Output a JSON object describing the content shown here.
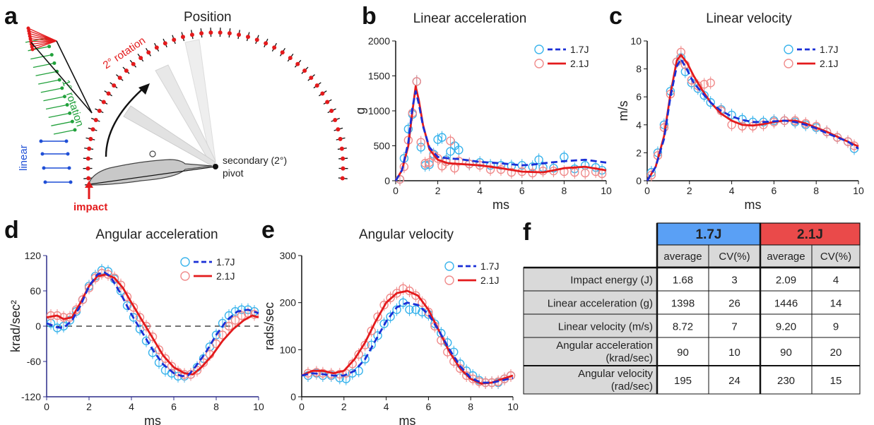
{
  "colors": {
    "series_1_7J": "#1a2fd6",
    "series_2_1J": "#e31a1c",
    "marker_1_7J": "#3ab4ec",
    "marker_2_1J": "#f08b8b",
    "rotation1": "#22a13c",
    "rotation2": "#e31a1c",
    "linear": "#1f4fd6",
    "header_1_7J": "#5aa0f5",
    "header_2_1J": "#ea4a4a"
  },
  "panel_a": {
    "letter": "a",
    "title": "Position",
    "label_rotation2": "2° rotation",
    "label_rotation1": "1° rotation",
    "label_linear": "linear",
    "label_impact": "impact",
    "label_pivot_line1": "secondary (2°)",
    "label_pivot_line2": "pivot"
  },
  "panel_b": {
    "letter": "b"
  },
  "panel_c": {
    "letter": "c"
  },
  "panel_d": {
    "letter": "d"
  },
  "panel_e": {
    "letter": "e"
  },
  "panel_f": {
    "letter": "f"
  },
  "chart_data": [
    {
      "type": "line",
      "title": "Linear acceleration",
      "xlabel": "ms",
      "ylabel": "g",
      "xlim": [
        0,
        10
      ],
      "ylim": [
        0,
        2000
      ],
      "xticks": [
        0,
        2,
        4,
        6,
        8,
        10
      ],
      "yticks": [
        0,
        500,
        1000,
        1500,
        2000
      ],
      "legend_position": "top-right",
      "series": [
        {
          "name": "1.7J",
          "style": "dashed",
          "x": [
            0,
            0.3,
            0.6,
            0.8,
            0.95,
            1.1,
            1.3,
            1.6,
            2,
            2.5,
            3,
            3.5,
            4,
            5,
            6,
            6.5,
            7,
            8,
            9,
            10
          ],
          "y": [
            0,
            150,
            550,
            1050,
            1280,
            1100,
            780,
            480,
            340,
            320,
            310,
            290,
            270,
            250,
            220,
            230,
            250,
            280,
            300,
            260
          ]
        },
        {
          "name": "2.1J",
          "style": "solid",
          "x": [
            0,
            0.3,
            0.6,
            0.8,
            0.95,
            1.1,
            1.3,
            1.6,
            2,
            2.5,
            3,
            3.5,
            4,
            5,
            6,
            7,
            7.5,
            8,
            9,
            10
          ],
          "y": [
            0,
            150,
            500,
            1000,
            1350,
            1150,
            800,
            450,
            300,
            250,
            240,
            230,
            220,
            180,
            130,
            120,
            150,
            180,
            200,
            150
          ]
        },
        {
          "name": "1.7J markers",
          "marker": "circle",
          "x": [
            0.2,
            0.4,
            0.6,
            0.8,
            1,
            1.2,
            1.4,
            1.6,
            1.8,
            2,
            2.2,
            2.4,
            2.6,
            2.8,
            3,
            3.5,
            4,
            4.5,
            5,
            5.5,
            6,
            6.5,
            6.8,
            7,
            7.5,
            8,
            8.5,
            9,
            9.5,
            9.8
          ],
          "y": [
            20,
            320,
            740,
            950,
            1420,
            480,
            220,
            230,
            380,
            590,
            620,
            300,
            420,
            500,
            440,
            240,
            260,
            220,
            220,
            210,
            220,
            200,
            300,
            190,
            180,
            340,
            170,
            220,
            190,
            150
          ]
        },
        {
          "name": "2.1J markers",
          "marker": "circle",
          "x": [
            0.2,
            0.4,
            0.6,
            0.8,
            1,
            1.2,
            1.4,
            1.6,
            1.8,
            2,
            2.2,
            2.4,
            2.6,
            2.8,
            3,
            3.5,
            4,
            4.5,
            5,
            5.5,
            6,
            6.5,
            7,
            7.5,
            8,
            8.5,
            9,
            9.5,
            9.8
          ],
          "y": [
            20,
            200,
            580,
            970,
            1420,
            550,
            250,
            260,
            360,
            320,
            210,
            270,
            570,
            180,
            280,
            240,
            220,
            160,
            160,
            120,
            130,
            110,
            140,
            140,
            130,
            120,
            110,
            130,
            100
          ]
        }
      ]
    },
    {
      "type": "line",
      "title": "Linear velocity",
      "xlabel": "ms",
      "ylabel": "m/s",
      "xlim": [
        0,
        10
      ],
      "ylim": [
        0,
        10
      ],
      "xticks": [
        0,
        2,
        4,
        6,
        8,
        10
      ],
      "yticks": [
        0,
        2,
        4,
        6,
        8,
        10
      ],
      "legend_position": "top-right",
      "series": [
        {
          "name": "1.7J",
          "style": "dashed",
          "x": [
            0,
            0.4,
            0.8,
            1.1,
            1.4,
            1.6,
            1.9,
            2.2,
            2.6,
            3,
            3.5,
            4,
            4.5,
            5,
            5.5,
            6,
            6.5,
            7,
            7.5,
            8,
            8.5,
            9,
            9.5,
            10
          ],
          "y": [
            0,
            1,
            3,
            6,
            8.2,
            8.7,
            7.9,
            7,
            6.3,
            5.6,
            5,
            4.6,
            4.35,
            4.2,
            4.2,
            4.25,
            4.3,
            4.2,
            4,
            3.75,
            3.4,
            3.1,
            2.8,
            2.3
          ]
        },
        {
          "name": "2.1J",
          "style": "solid",
          "x": [
            0,
            0.4,
            0.8,
            1.1,
            1.4,
            1.6,
            1.9,
            2.2,
            2.6,
            3,
            3.5,
            4,
            4.5,
            5,
            5.5,
            6,
            6.5,
            7,
            7.5,
            8,
            8.5,
            9,
            9.5,
            10
          ],
          "y": [
            0,
            1,
            3.2,
            6.2,
            8.6,
            9,
            8.4,
            7.5,
            6.5,
            5.6,
            4.8,
            4.3,
            4,
            3.95,
            4.05,
            4.2,
            4.3,
            4.3,
            4.1,
            3.8,
            3.5,
            3.15,
            2.8,
            2.45
          ]
        },
        {
          "name": "1.7J markers",
          "marker": "circle",
          "x": [
            0.2,
            0.5,
            0.8,
            1.1,
            1.4,
            1.6,
            1.8,
            2.1,
            2.4,
            2.7,
            3,
            3.5,
            4,
            4.5,
            5,
            5.5,
            6,
            6.5,
            7,
            7.5,
            8,
            8.5,
            9,
            9.5,
            9.8
          ],
          "y": [
            0.6,
            2,
            4,
            6.4,
            8.5,
            8.8,
            7.8,
            7,
            6.6,
            6.1,
            5.6,
            5.1,
            4.7,
            4.4,
            4.2,
            4.2,
            4.3,
            4.3,
            4.2,
            4,
            3.8,
            3.5,
            3.1,
            2.8,
            2.3
          ]
        },
        {
          "name": "2.1J markers",
          "marker": "circle",
          "x": [
            0.2,
            0.5,
            0.8,
            1.1,
            1.4,
            1.6,
            1.8,
            2.1,
            2.4,
            2.7,
            3,
            3.5,
            4,
            4.5,
            5,
            5.5,
            6,
            6.5,
            7,
            7.5,
            8,
            8.5,
            9,
            9.5,
            9.8
          ],
          "y": [
            0.4,
            1.8,
            3.8,
            6.2,
            8.5,
            9.2,
            8.3,
            7.2,
            6.8,
            6.9,
            7,
            5,
            4,
            3.9,
            3.9,
            4,
            4.2,
            4.3,
            4.3,
            4.1,
            3.9,
            3.5,
            3.1,
            2.8,
            2.5
          ]
        }
      ]
    },
    {
      "type": "line",
      "title": "Angular acceleration",
      "xlabel": "ms",
      "ylabel": "krad/sec²",
      "xlim": [
        0,
        10
      ],
      "ylim": [
        -120,
        120
      ],
      "xticks": [
        0,
        2,
        4,
        6,
        8,
        10
      ],
      "yticks": [
        -120,
        -60,
        0,
        60,
        120
      ],
      "reference_line": 0,
      "legend_position": "top-right",
      "series": [
        {
          "name": "1.7J",
          "style": "dashed",
          "x": [
            0,
            0.5,
            0.8,
            1.2,
            1.6,
            2,
            2.4,
            2.7,
            3,
            3.5,
            4,
            4.5,
            5,
            5.5,
            6,
            6.4,
            6.7,
            7,
            7.5,
            8,
            8.5,
            9,
            9.5,
            10
          ],
          "y": [
            5,
            -2,
            -3,
            10,
            35,
            68,
            88,
            92,
            85,
            55,
            20,
            -10,
            -40,
            -65,
            -80,
            -85,
            -83,
            -70,
            -45,
            -15,
            10,
            25,
            28,
            22
          ]
        },
        {
          "name": "2.1J",
          "style": "solid",
          "x": [
            0,
            0.5,
            0.8,
            1.2,
            1.6,
            2,
            2.4,
            2.8,
            3.2,
            3.6,
            4,
            4.5,
            5,
            5.5,
            6,
            6.5,
            6.9,
            7.3,
            7.8,
            8.3,
            8.8,
            9.3,
            9.7,
            10
          ],
          "y": [
            15,
            18,
            12,
            15,
            40,
            68,
            85,
            88,
            82,
            65,
            40,
            10,
            -20,
            -50,
            -70,
            -80,
            -82,
            -70,
            -50,
            -25,
            -5,
            10,
            18,
            15
          ]
        },
        {
          "name": "1.7J markers",
          "marker": "circle",
          "x": [
            0.2,
            0.5,
            0.8,
            1.1,
            1.4,
            1.7,
            2,
            2.3,
            2.6,
            2.9,
            3.2,
            3.5,
            3.8,
            4.1,
            4.4,
            4.7,
            5,
            5.3,
            5.6,
            5.9,
            6.2,
            6.5,
            6.8,
            7.1,
            7.4,
            7.7,
            8,
            8.3,
            8.6,
            8.9,
            9.2,
            9.5,
            9.8
          ],
          "y": [
            5,
            -3,
            0,
            10,
            25,
            45,
            68,
            85,
            95,
            93,
            80,
            60,
            35,
            15,
            -5,
            -25,
            -45,
            -62,
            -75,
            -80,
            -85,
            -85,
            -82,
            -70,
            -55,
            -35,
            -15,
            5,
            18,
            25,
            28,
            28,
            25
          ]
        },
        {
          "name": "2.1J markers",
          "marker": "circle",
          "x": [
            0.2,
            0.5,
            0.8,
            1.1,
            1.4,
            1.7,
            2,
            2.3,
            2.6,
            2.9,
            3.2,
            3.5,
            3.8,
            4.1,
            4.4,
            4.7,
            5,
            5.3,
            5.6,
            5.9,
            6.2,
            6.5,
            6.8,
            7.1,
            7.4,
            7.7,
            8,
            8.3,
            8.6,
            8.9,
            9.2,
            9.5,
            9.8
          ],
          "y": [
            18,
            18,
            15,
            15,
            28,
            45,
            65,
            82,
            90,
            88,
            82,
            70,
            50,
            32,
            15,
            0,
            -18,
            -40,
            -55,
            -68,
            -78,
            -82,
            -82,
            -75,
            -62,
            -48,
            -30,
            -15,
            0,
            10,
            18,
            22,
            20
          ]
        }
      ]
    },
    {
      "type": "line",
      "title": "Angular velocity",
      "xlabel": "ms",
      "ylabel": "rads/sec",
      "xlim": [
        0,
        10
      ],
      "ylim": [
        0,
        300
      ],
      "xticks": [
        0,
        2,
        4,
        6,
        8,
        10
      ],
      "yticks": [
        0,
        100,
        200,
        300
      ],
      "legend_position": "top-right",
      "series": [
        {
          "name": "1.7J",
          "style": "dashed",
          "x": [
            0,
            0.5,
            1,
            1.5,
            2,
            2.5,
            3,
            3.5,
            4,
            4.5,
            5,
            5.5,
            6,
            6.5,
            7,
            7.5,
            8,
            8.5,
            9,
            9.5,
            10
          ],
          "y": [
            45,
            50,
            48,
            45,
            45,
            55,
            80,
            120,
            160,
            190,
            200,
            195,
            175,
            140,
            100,
            65,
            40,
            30,
            30,
            35,
            40
          ]
        },
        {
          "name": "2.1J",
          "style": "solid",
          "x": [
            0,
            0.5,
            1,
            1.5,
            2,
            2.5,
            3,
            3.5,
            4,
            4.5,
            5,
            5.5,
            6,
            6.5,
            7,
            7.5,
            8,
            8.5,
            9,
            9.5,
            10
          ],
          "y": [
            45,
            55,
            55,
            50,
            55,
            80,
            115,
            160,
            200,
            220,
            225,
            215,
            185,
            140,
            95,
            60,
            38,
            28,
            30,
            38,
            45
          ]
        },
        {
          "name": "1.7J markers",
          "marker": "circle",
          "x": [
            0.3,
            0.7,
            1,
            1.4,
            1.8,
            2.1,
            2.4,
            2.7,
            3,
            3.3,
            3.6,
            3.9,
            4.2,
            4.5,
            4.8,
            5.1,
            5.4,
            5.7,
            6,
            6.3,
            6.6,
            6.9,
            7.2,
            7.5,
            7.8,
            8.1,
            8.4,
            8.7,
            9,
            9.3,
            9.6,
            9.9
          ],
          "y": [
            45,
            50,
            45,
            45,
            40,
            38,
            50,
            55,
            80,
            110,
            130,
            155,
            170,
            185,
            200,
            185,
            185,
            180,
            175,
            155,
            135,
            115,
            95,
            70,
            55,
            45,
            35,
            30,
            30,
            30,
            38,
            45
          ]
        },
        {
          "name": "2.1J markers",
          "marker": "circle",
          "x": [
            0.3,
            0.7,
            1,
            1.4,
            1.8,
            2.1,
            2.4,
            2.7,
            3,
            3.3,
            3.6,
            3.9,
            4.2,
            4.5,
            4.8,
            5.1,
            5.4,
            5.7,
            6,
            6.3,
            6.6,
            6.9,
            7.2,
            7.5,
            7.8,
            8.1,
            8.4,
            8.7,
            9,
            9.3,
            9.6,
            9.9
          ],
          "y": [
            50,
            52,
            50,
            48,
            48,
            50,
            70,
            90,
            110,
            140,
            170,
            195,
            210,
            220,
            230,
            225,
            215,
            200,
            180,
            150,
            120,
            95,
            75,
            60,
            45,
            38,
            32,
            30,
            30,
            32,
            38,
            45
          ]
        }
      ]
    },
    {
      "type": "table",
      "group_headers": [
        "1.7J",
        "2.1J"
      ],
      "subheaders": [
        "average",
        "CV(%)",
        "average",
        "CV(%)"
      ],
      "rows": [
        {
          "label": [
            "Impact energy (J)"
          ],
          "values": [
            "1.68",
            "3",
            "2.09",
            "4"
          ]
        },
        {
          "label": [
            "Linear acceleration (g)"
          ],
          "values": [
            "1398",
            "26",
            "1446",
            "14"
          ]
        },
        {
          "label": [
            "Linear velocity (m/s)"
          ],
          "values": [
            "8.72",
            "7",
            "9.20",
            "9"
          ]
        },
        {
          "label": [
            "Angular acceleration",
            "(krad/sec)"
          ],
          "values": [
            "90",
            "10",
            "90",
            "20"
          ]
        },
        {
          "label": [
            "Angular velocity",
            "(rad/sec)"
          ],
          "values": [
            "195",
            "24",
            "230",
            "15"
          ]
        }
      ]
    }
  ]
}
